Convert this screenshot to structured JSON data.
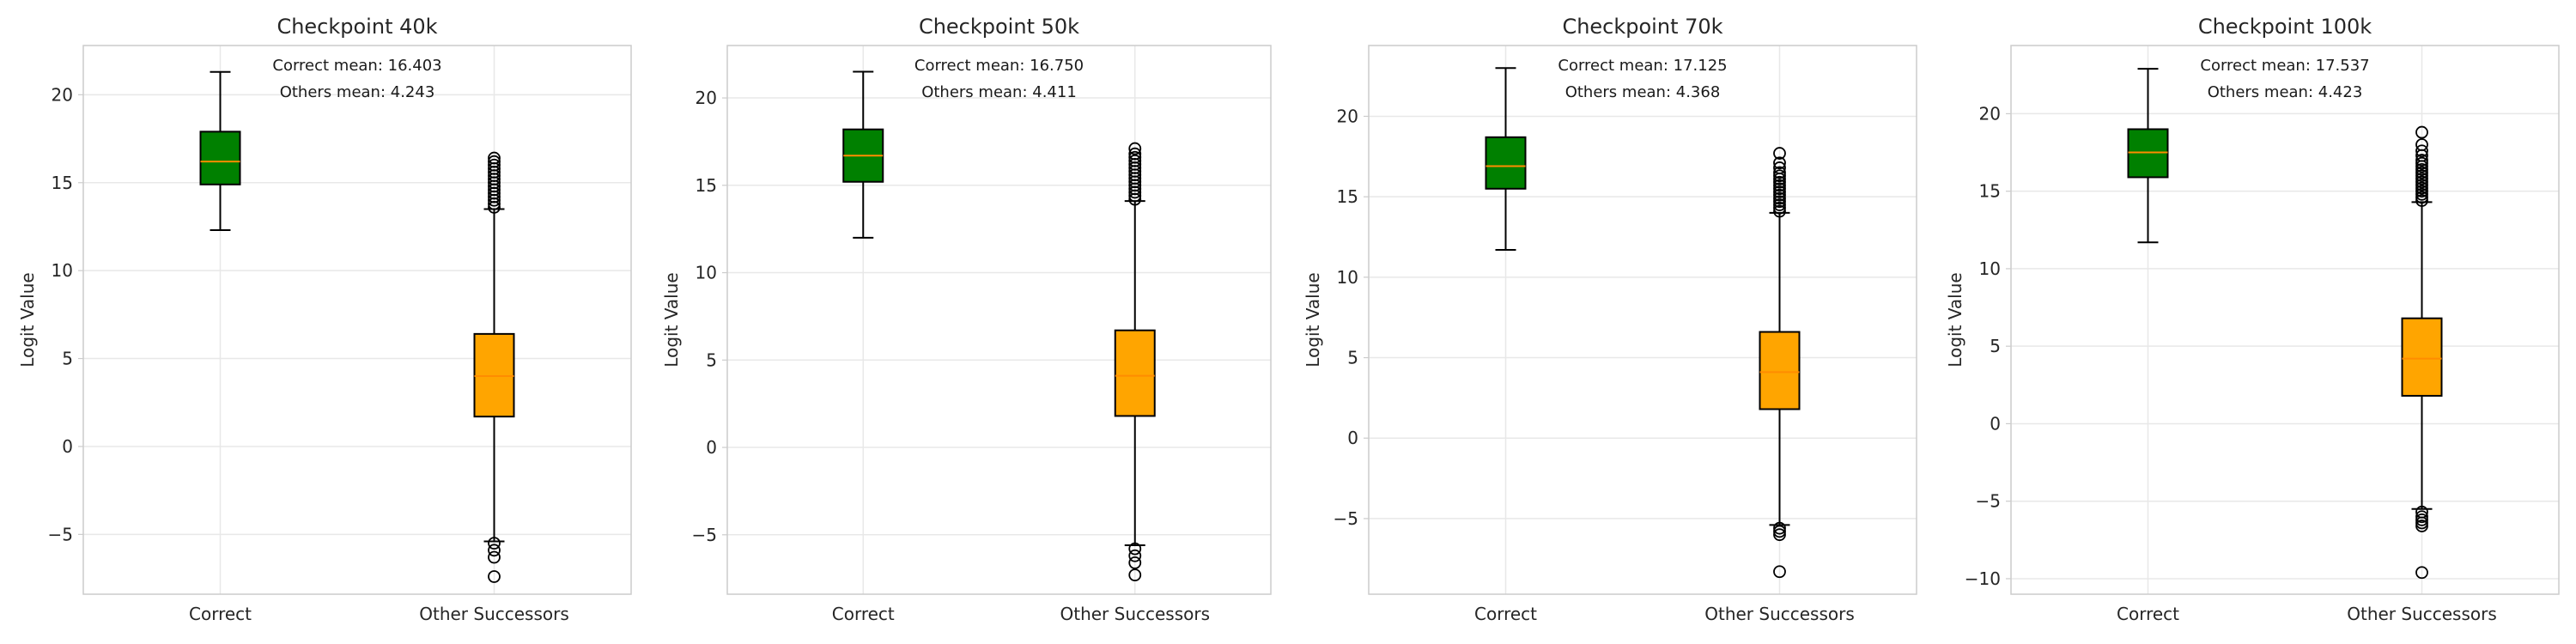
{
  "colors": {
    "correct_box": "#008000",
    "others_box": "#FFA500",
    "median_line": "#FF8C00",
    "whisker": "#000000",
    "frame": "#cccccc",
    "grid": "#e8e8e8"
  },
  "chart_data": [
    {
      "type": "box",
      "title": "Checkpoint 40k",
      "xlabel": "",
      "ylabel": "Logit Value",
      "categories": [
        "Correct",
        "Other Successors"
      ],
      "ylim": [
        -8.4,
        22.8
      ],
      "yticks": [
        -5,
        0,
        5,
        10,
        15,
        20
      ],
      "grid": true,
      "annotations": [
        "Correct mean: 16.403",
        "Others mean: 4.243"
      ],
      "boxes": [
        {
          "category": "Correct",
          "whislo": 12.3,
          "q1": 14.9,
          "med": 16.2,
          "q3": 17.9,
          "whishi": 21.3,
          "fliers": []
        },
        {
          "category": "Other Successors",
          "whislo": -5.4,
          "q1": 1.7,
          "med": 4.0,
          "q3": 6.4,
          "whishi": 13.5,
          "fliers": [
            13.6,
            13.8,
            14.0,
            14.2,
            14.4,
            14.6,
            14.8,
            15.0,
            15.2,
            15.4,
            15.6,
            15.8,
            16.0,
            16.2,
            16.4,
            -5.5,
            -5.9,
            -6.3,
            -7.4
          ]
        }
      ]
    },
    {
      "type": "box",
      "title": "Checkpoint 50k",
      "xlabel": "",
      "ylabel": "Logit Value",
      "categories": [
        "Correct",
        "Other Successors"
      ],
      "ylim": [
        -8.4,
        23.0
      ],
      "yticks": [
        -5,
        0,
        5,
        10,
        15,
        20
      ],
      "grid": true,
      "annotations": [
        "Correct mean: 16.750",
        "Others mean: 4.411"
      ],
      "boxes": [
        {
          "category": "Correct",
          "whislo": 12.0,
          "q1": 15.2,
          "med": 16.7,
          "q3": 18.2,
          "whishi": 21.5,
          "fliers": []
        },
        {
          "category": "Other Successors",
          "whislo": -5.6,
          "q1": 1.8,
          "med": 4.1,
          "q3": 6.7,
          "whishi": 14.1,
          "fliers": [
            14.2,
            14.4,
            14.6,
            14.8,
            15.0,
            15.2,
            15.4,
            15.6,
            15.8,
            16.0,
            16.2,
            16.4,
            16.6,
            16.8,
            17.1,
            -5.8,
            -6.2,
            -6.6,
            -7.3
          ]
        }
      ]
    },
    {
      "type": "box",
      "title": "Checkpoint 70k",
      "xlabel": "",
      "ylabel": "Logit Value",
      "categories": [
        "Correct",
        "Other Successors"
      ],
      "ylim": [
        -9.7,
        24.4
      ],
      "yticks": [
        -5,
        0,
        5,
        10,
        15,
        20
      ],
      "grid": true,
      "annotations": [
        "Correct mean: 17.125",
        "Others mean: 4.368"
      ],
      "boxes": [
        {
          "category": "Correct",
          "whislo": 11.7,
          "q1": 15.5,
          "med": 16.9,
          "q3": 18.7,
          "whishi": 23.0,
          "fliers": []
        },
        {
          "category": "Other Successors",
          "whislo": -5.4,
          "q1": 1.8,
          "med": 4.1,
          "q3": 6.6,
          "whishi": 14.0,
          "fliers": [
            14.1,
            14.3,
            14.5,
            14.7,
            14.9,
            15.1,
            15.3,
            15.5,
            15.7,
            15.9,
            16.1,
            16.3,
            16.5,
            16.8,
            17.1,
            17.7,
            -5.6,
            -5.8,
            -6.0,
            -8.3
          ]
        }
      ]
    },
    {
      "type": "box",
      "title": "Checkpoint 100k",
      "xlabel": "",
      "ylabel": "Logit Value",
      "categories": [
        "Correct",
        "Other Successors"
      ],
      "ylim": [
        -11.0,
        24.4
      ],
      "yticks": [
        -10,
        -5,
        0,
        5,
        10,
        15,
        20
      ],
      "grid": true,
      "annotations": [
        "Correct mean: 17.537",
        "Others mean: 4.423"
      ],
      "boxes": [
        {
          "category": "Correct",
          "whislo": 11.7,
          "q1": 15.9,
          "med": 17.5,
          "q3": 19.0,
          "whishi": 22.9,
          "fliers": []
        },
        {
          "category": "Other Successors",
          "whislo": -5.5,
          "q1": 1.8,
          "med": 4.2,
          "q3": 6.8,
          "whishi": 14.3,
          "fliers": [
            14.4,
            14.6,
            14.8,
            15.0,
            15.2,
            15.4,
            15.6,
            15.8,
            16.0,
            16.2,
            16.4,
            16.6,
            16.8,
            17.0,
            17.3,
            17.6,
            18.0,
            18.8,
            -5.7,
            -6.0,
            -6.2,
            -6.4,
            -6.6,
            -9.6
          ]
        }
      ]
    }
  ]
}
